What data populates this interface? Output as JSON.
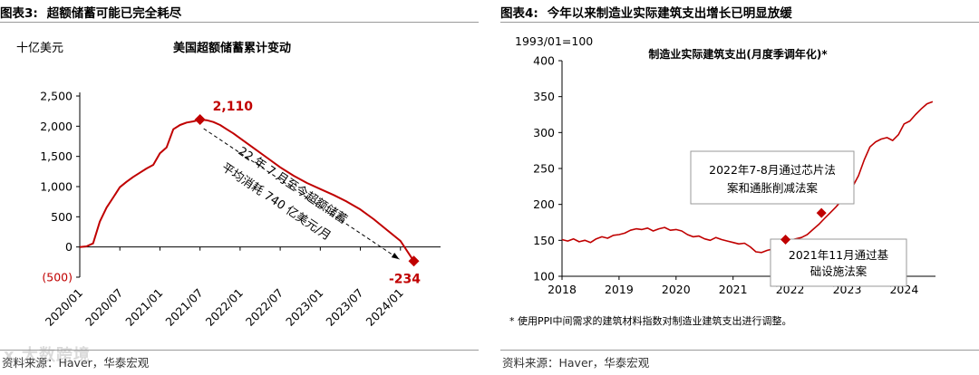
{
  "watermark": "x 大数跨境",
  "left": {
    "fig_no": "图表3:",
    "fig_title": "超额储蓄可能已完全耗尽",
    "source": "资料来源：Haver，华泰宏观",
    "colors": {
      "line": "#c00000",
      "marker": "#c00000",
      "negative_tick": "#c00000"
    },
    "chart_data": {
      "type": "line",
      "title": "美国超额储蓄累计变动",
      "ylabel": "十亿美元",
      "ylim": [
        -500,
        2500
      ],
      "yticks": [
        -500,
        0,
        500,
        1000,
        1500,
        2000,
        2500
      ],
      "ytick_labels": [
        "(500)",
        "0",
        "500",
        "1,000",
        "1,500",
        "2,000",
        "2,500"
      ],
      "xticks": [
        "2020/01",
        "2020/07",
        "2021/01",
        "2021/07",
        "2022/01",
        "2022/07",
        "2023/01",
        "2023/07",
        "2024/01"
      ],
      "series": [
        {
          "x": [
            "2020/01",
            "2020/02",
            "2020/03",
            "2020/04",
            "2020/05",
            "2020/06",
            "2020/07",
            "2020/08",
            "2020/09",
            "2020/10",
            "2020/11",
            "2020/12",
            "2021/01",
            "2021/02",
            "2021/03",
            "2021/04",
            "2021/05",
            "2021/06",
            "2021/07",
            "2021/08",
            "2021/09",
            "2021/10",
            "2021/11",
            "2021/12",
            "2022/01",
            "2022/03",
            "2022/05",
            "2022/07",
            "2022/09",
            "2022/11",
            "2023/01",
            "2023/03",
            "2023/05",
            "2023/07",
            "2023/09",
            "2023/11",
            "2024/01",
            "2024/03"
          ],
          "values": [
            0,
            10,
            60,
            420,
            650,
            820,
            990,
            1080,
            1160,
            1230,
            1300,
            1360,
            1550,
            1650,
            1950,
            2020,
            2060,
            2080,
            2110,
            2100,
            2070,
            2020,
            1950,
            1880,
            1800,
            1640,
            1480,
            1320,
            1180,
            1060,
            960,
            860,
            750,
            620,
            460,
            280,
            100,
            -234
          ]
        }
      ],
      "highlights": [
        {
          "x": "2021/07",
          "value": 2110,
          "label": "2,110"
        },
        {
          "x": "2024/03",
          "value": -234,
          "label": "-234"
        }
      ],
      "annotation": [
        "22 年 7 月至今超额储蓄",
        "平均消耗 740 亿美元/月"
      ]
    }
  },
  "right": {
    "fig_no": "图表4:",
    "fig_title": "今年以来制造业实际建筑支出增长已明显放缓",
    "source": "资料来源：Haver，华泰宏观",
    "footnote": "* 使用PPI中间需求的建筑材料指数对制造业建筑支出进行调整。",
    "colors": {
      "line": "#c00000",
      "marker": "#c00000"
    },
    "chart_data": {
      "type": "line",
      "title": "制造业实际建筑支出(月度季调年化)*",
      "ylabel": "1993/01=100",
      "ylim": [
        100,
        400
      ],
      "yticks": [
        100,
        150,
        200,
        250,
        300,
        350,
        400
      ],
      "xticks": [
        "2018",
        "2019",
        "2020",
        "2021",
        "2022",
        "2023",
        "2024"
      ],
      "series": [
        {
          "x": [
            2018.0,
            2018.1,
            2018.2,
            2018.3,
            2018.4,
            2018.5,
            2018.6,
            2018.7,
            2018.8,
            2018.9,
            2019.0,
            2019.1,
            2019.2,
            2019.3,
            2019.4,
            2019.5,
            2019.6,
            2019.7,
            2019.8,
            2019.9,
            2020.0,
            2020.1,
            2020.2,
            2020.3,
            2020.4,
            2020.5,
            2020.6,
            2020.7,
            2020.8,
            2020.9,
            2021.0,
            2021.1,
            2021.2,
            2021.3,
            2021.4,
            2021.5,
            2021.6,
            2021.7,
            2021.8,
            2021.9,
            2022.0,
            2022.1,
            2022.2,
            2022.3,
            2022.4,
            2022.5,
            2022.6,
            2022.7,
            2022.8,
            2022.9,
            2023.0,
            2023.1,
            2023.2,
            2023.3,
            2023.4,
            2023.5,
            2023.6,
            2023.7,
            2023.8,
            2023.9,
            2024.0,
            2024.1,
            2024.2,
            2024.3,
            2024.4,
            2024.5
          ],
          "values": [
            151,
            149,
            152,
            148,
            150,
            147,
            152,
            155,
            153,
            157,
            158,
            160,
            164,
            166,
            165,
            167,
            163,
            166,
            168,
            164,
            165,
            163,
            158,
            155,
            156,
            152,
            150,
            154,
            151,
            149,
            147,
            145,
            146,
            141,
            134,
            133,
            136,
            138,
            142,
            146,
            150,
            152,
            154,
            158,
            165,
            172,
            180,
            188,
            196,
            205,
            215,
            225,
            240,
            262,
            280,
            287,
            291,
            293,
            289,
            297,
            312,
            316,
            325,
            333,
            340,
            343
          ]
        }
      ],
      "highlights": [
        {
          "x": 2021.92,
          "value": 151,
          "label": "2021年11月通过基础设施法案"
        },
        {
          "x": 2022.55,
          "value": 188,
          "label": "2022年7-8月通过芯片法案和通胀削减法案"
        }
      ],
      "annotations": [
        {
          "lines": [
            "2022年7-8月通过芯片法",
            "案和通胀削减法案"
          ]
        },
        {
          "lines": [
            "2021年11月通过基",
            "础设施法案"
          ]
        }
      ]
    }
  }
}
